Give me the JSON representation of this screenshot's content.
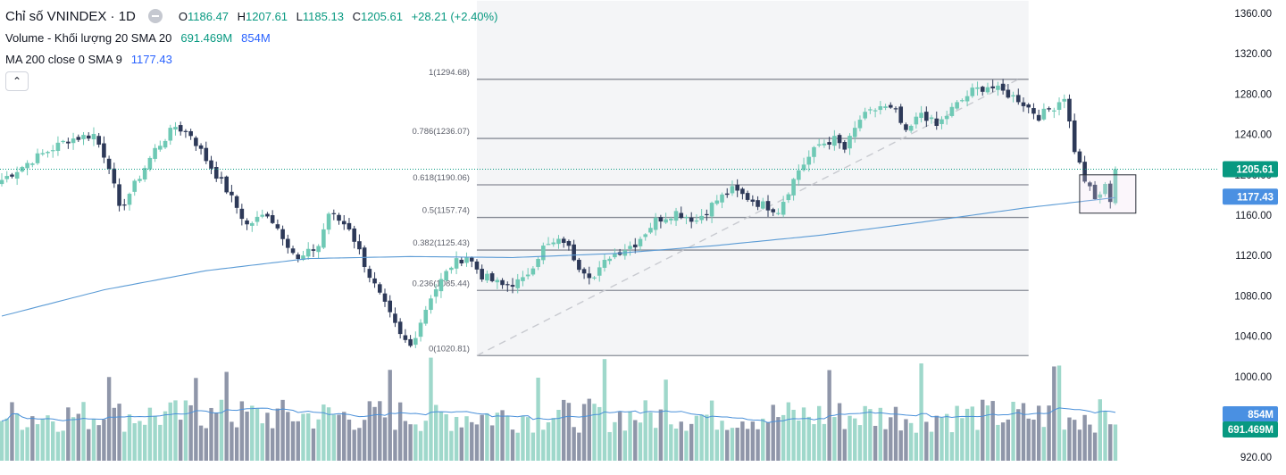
{
  "legend": {
    "symbol": "Chỉ số VNINDEX · 1D",
    "ohlc": {
      "o_label": "O",
      "o": "1186.47",
      "h_label": "H",
      "h": "1207.61",
      "l_label": "L",
      "l": "1185.13",
      "c_label": "C",
      "c": "1205.61",
      "change": "+28.21 (+2.40%)"
    },
    "volume_label": "Volume - Khối lượng 20 SMA 20",
    "volume_value": "691.469M",
    "volume_sma_value": "854M",
    "ma_label": "MA 200 close 0 SMA 9",
    "ma_value": "1177.43",
    "toggle_icon": "chevron-up-icon"
  },
  "colors": {
    "up": "#6fc9b5",
    "down": "#2d3958",
    "vol_up": "#9fd8cb",
    "vol_down": "#8f96a9",
    "ma_line": "#5b9bd5",
    "vol_ma_line": "#4a90d9",
    "price_tag": "#089981",
    "ma_tag": "#4a90e2",
    "fib_line": "#878b96",
    "fib_fill": "#f4f5f7"
  },
  "chart_data": {
    "type": "candlestick",
    "title": "Chỉ số VNINDEX · 1D",
    "y_axis": {
      "ticks": [
        "1360.00",
        "1320.00",
        "1280.00",
        "1240.00",
        "1200.00",
        "1160.00",
        "1120.00",
        "1080.00",
        "1040.00",
        "1000.00",
        "920.00"
      ],
      "range": [
        915,
        1368
      ]
    },
    "last_price": "1205.61",
    "ma_last": "1177.43",
    "vol_last": "691.469M",
    "vol_sma_last": "854M",
    "fibonacci": [
      {
        "label": "1(1294.68)",
        "level": 1294.68
      },
      {
        "label": "0.786(1236.07)",
        "level": 1236.07
      },
      {
        "label": "0.618(1190.06)",
        "level": 1190.06
      },
      {
        "label": "0.5(1157.74)",
        "level": 1157.74
      },
      {
        "label": "0.382(1125.43)",
        "level": 1125.43
      },
      {
        "label": "0.236(1085.44)",
        "level": 1085.44
      },
      {
        "label": "0(1020.81)",
        "level": 1020.81
      }
    ],
    "anchors": [
      {
        "i": 0,
        "c": 1195
      },
      {
        "i": 6,
        "c": 1215
      },
      {
        "i": 13,
        "c": 1235
      },
      {
        "i": 18,
        "c": 1240
      },
      {
        "i": 21,
        "c": 1210
      },
      {
        "i": 23,
        "c": 1165
      },
      {
        "i": 26,
        "c": 1190
      },
      {
        "i": 30,
        "c": 1225
      },
      {
        "i": 34,
        "c": 1248
      },
      {
        "i": 37,
        "c": 1240
      },
      {
        "i": 40,
        "c": 1215
      },
      {
        "i": 44,
        "c": 1185
      },
      {
        "i": 48,
        "c": 1150
      },
      {
        "i": 52,
        "c": 1162
      },
      {
        "i": 55,
        "c": 1140
      },
      {
        "i": 58,
        "c": 1115
      },
      {
        "i": 62,
        "c": 1130
      },
      {
        "i": 64,
        "c": 1162
      },
      {
        "i": 68,
        "c": 1148
      },
      {
        "i": 72,
        "c": 1100
      },
      {
        "i": 75,
        "c": 1070
      },
      {
        "i": 78,
        "c": 1040
      },
      {
        "i": 80,
        "c": 1030
      },
      {
        "i": 84,
        "c": 1080
      },
      {
        "i": 88,
        "c": 1110
      },
      {
        "i": 91,
        "c": 1120
      },
      {
        "i": 94,
        "c": 1100
      },
      {
        "i": 98,
        "c": 1090
      },
      {
        "i": 102,
        "c": 1095
      },
      {
        "i": 106,
        "c": 1128
      },
      {
        "i": 110,
        "c": 1135
      },
      {
        "i": 113,
        "c": 1110
      },
      {
        "i": 116,
        "c": 1098
      },
      {
        "i": 119,
        "c": 1120
      },
      {
        "i": 124,
        "c": 1132
      },
      {
        "i": 128,
        "c": 1155
      },
      {
        "i": 132,
        "c": 1163
      },
      {
        "i": 136,
        "c": 1155
      },
      {
        "i": 140,
        "c": 1175
      },
      {
        "i": 143,
        "c": 1185
      },
      {
        "i": 148,
        "c": 1172
      },
      {
        "i": 152,
        "c": 1165
      },
      {
        "i": 156,
        "c": 1205
      },
      {
        "i": 160,
        "c": 1230
      },
      {
        "i": 163,
        "c": 1235
      },
      {
        "i": 165,
        "c": 1225
      },
      {
        "i": 168,
        "c": 1255
      },
      {
        "i": 172,
        "c": 1268
      },
      {
        "i": 175,
        "c": 1262
      },
      {
        "i": 177,
        "c": 1240
      },
      {
        "i": 180,
        "c": 1262
      },
      {
        "i": 183,
        "c": 1248
      },
      {
        "i": 186,
        "c": 1265
      },
      {
        "i": 190,
        "c": 1283
      },
      {
        "i": 193,
        "c": 1288
      },
      {
        "i": 196,
        "c": 1282
      },
      {
        "i": 199,
        "c": 1275
      },
      {
        "i": 203,
        "c": 1258
      },
      {
        "i": 206,
        "c": 1268
      },
      {
        "i": 208,
        "c": 1278
      },
      {
        "i": 210,
        "c": 1225
      },
      {
        "i": 212,
        "c": 1195
      },
      {
        "i": 214,
        "c": 1175
      },
      {
        "i": 216,
        "c": 1188
      },
      {
        "i": 217,
        "c": 1176
      },
      {
        "i": 218,
        "c": 1205.61
      }
    ],
    "ma200": [
      {
        "i": 0,
        "v": 1060
      },
      {
        "i": 20,
        "v": 1086
      },
      {
        "i": 40,
        "v": 1105
      },
      {
        "i": 60,
        "v": 1117
      },
      {
        "i": 80,
        "v": 1119
      },
      {
        "i": 100,
        "v": 1118
      },
      {
        "i": 120,
        "v": 1122
      },
      {
        "i": 140,
        "v": 1130
      },
      {
        "i": 160,
        "v": 1140
      },
      {
        "i": 180,
        "v": 1153
      },
      {
        "i": 200,
        "v": 1167
      },
      {
        "i": 218,
        "v": 1177.43
      }
    ],
    "volume": {
      "bar_count": 219,
      "max_ratio": 1.0,
      "base_ratio": 0.6,
      "spikes": [
        21,
        38,
        44,
        76,
        84,
        105,
        118,
        130,
        162,
        180,
        206,
        207
      ]
    }
  }
}
